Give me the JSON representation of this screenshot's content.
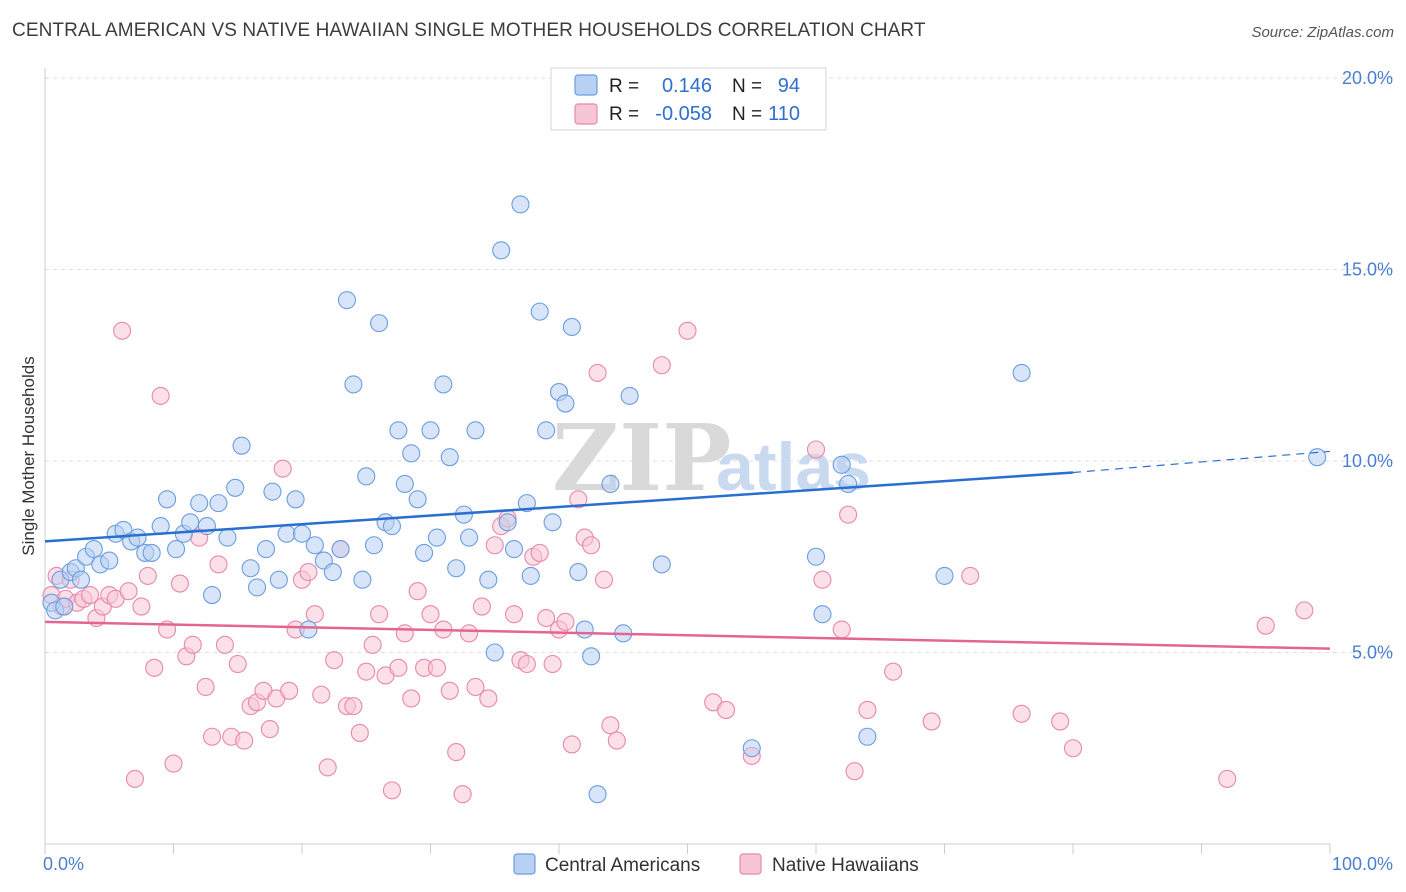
{
  "title": "CENTRAL AMERICAN VS NATIVE HAWAIIAN SINGLE MOTHER HOUSEHOLDS CORRELATION CHART",
  "source": "Source: ZipAtlas.com",
  "watermark": {
    "zip": "ZIP",
    "atlas": "atlas"
  },
  "colors": {
    "blue_fill": "#b8d0f3",
    "blue_stroke": "#6a9ee0",
    "blue_line": "#2a6fcf",
    "pink_fill": "#f7c6d6",
    "pink_stroke": "#e888aa",
    "pink_line": "#e36592",
    "axis_text": "#4a7fd0",
    "grid": "#dddddd"
  },
  "legend": {
    "rows": [
      {
        "r_label": "R =",
        "r_value": "0.146",
        "n_label": "N =",
        "n_value": "94"
      },
      {
        "r_label": "R =",
        "r_value": "-0.058",
        "n_label": "N =",
        "n_value": "110"
      }
    ]
  },
  "chart_data": {
    "type": "scatter",
    "title": "CENTRAL AMERICAN VS NATIVE HAWAIIAN SINGLE MOTHER HOUSEHOLDS CORRELATION CHART",
    "xlabel": "",
    "ylabel": "Single Mother Households",
    "xlim": [
      0,
      100
    ],
    "ylim": [
      0,
      20
    ],
    "x_tick_labels": [
      "0.0%",
      "100.0%"
    ],
    "y_ticks": [
      5,
      10,
      15,
      20
    ],
    "y_tick_labels": [
      "5.0%",
      "10.0%",
      "15.0%",
      "20.0%"
    ],
    "grid": true,
    "legend_position": "top-center",
    "series": [
      {
        "name": "Central Americans",
        "color": "#6a9ee0",
        "trend": {
          "x": [
            0,
            80
          ],
          "y": [
            7.9,
            9.7
          ],
          "dashed_to": [
            100,
            10.25
          ]
        },
        "points": [
          [
            0.5,
            6.3
          ],
          [
            0.8,
            6.1
          ],
          [
            1.2,
            6.9
          ],
          [
            1.5,
            6.2
          ],
          [
            2,
            7.1
          ],
          [
            2.4,
            7.2
          ],
          [
            2.8,
            6.9
          ],
          [
            3.2,
            7.5
          ],
          [
            3.8,
            7.7
          ],
          [
            4.3,
            7.3
          ],
          [
            5,
            7.4
          ],
          [
            5.5,
            8.1
          ],
          [
            6.1,
            8.2
          ],
          [
            6.7,
            7.9
          ],
          [
            7.2,
            8
          ],
          [
            7.8,
            7.6
          ],
          [
            8.3,
            7.6
          ],
          [
            9,
            8.3
          ],
          [
            9.5,
            9
          ],
          [
            10.2,
            7.7
          ],
          [
            10.8,
            8.1
          ],
          [
            11.3,
            8.4
          ],
          [
            12,
            8.9
          ],
          [
            12.6,
            8.3
          ],
          [
            13,
            6.5
          ],
          [
            13.5,
            8.9
          ],
          [
            14.2,
            8
          ],
          [
            14.8,
            9.3
          ],
          [
            15.3,
            10.4
          ],
          [
            16,
            7.2
          ],
          [
            16.5,
            6.7
          ],
          [
            17.2,
            7.7
          ],
          [
            17.7,
            9.2
          ],
          [
            18.2,
            6.9
          ],
          [
            18.8,
            8.1
          ],
          [
            19.5,
            9
          ],
          [
            20,
            8.1
          ],
          [
            20.5,
            5.6
          ],
          [
            21,
            7.8
          ],
          [
            21.7,
            7.4
          ],
          [
            22.4,
            7.1
          ],
          [
            23,
            7.7
          ],
          [
            23.5,
            14.2
          ],
          [
            24,
            12
          ],
          [
            24.7,
            6.9
          ],
          [
            25,
            9.6
          ],
          [
            25.6,
            7.8
          ],
          [
            26,
            13.6
          ],
          [
            26.5,
            8.4
          ],
          [
            27,
            8.3
          ],
          [
            27.5,
            10.8
          ],
          [
            28,
            9.4
          ],
          [
            28.5,
            10.2
          ],
          [
            29,
            9
          ],
          [
            29.5,
            7.6
          ],
          [
            30,
            10.8
          ],
          [
            30.5,
            8
          ],
          [
            31,
            12
          ],
          [
            31.5,
            10.1
          ],
          [
            32,
            7.2
          ],
          [
            32.6,
            8.6
          ],
          [
            33,
            8
          ],
          [
            33.5,
            10.8
          ],
          [
            34.5,
            6.9
          ],
          [
            35,
            5
          ],
          [
            35.5,
            15.5
          ],
          [
            36,
            8.4
          ],
          [
            36.5,
            7.7
          ],
          [
            37,
            16.7
          ],
          [
            37.5,
            8.9
          ],
          [
            37.8,
            7
          ],
          [
            38.5,
            13.9
          ],
          [
            39,
            10.8
          ],
          [
            39.5,
            8.4
          ],
          [
            40,
            11.8
          ],
          [
            40.5,
            11.5
          ],
          [
            41,
            13.5
          ],
          [
            41.5,
            7.1
          ],
          [
            42,
            5.6
          ],
          [
            42.5,
            4.9
          ],
          [
            43,
            1.3
          ],
          [
            44,
            9.4
          ],
          [
            45,
            5.5
          ],
          [
            45.5,
            11.7
          ],
          [
            48,
            7.3
          ],
          [
            55,
            2.5
          ],
          [
            60,
            7.5
          ],
          [
            60.5,
            6
          ],
          [
            62,
            9.9
          ],
          [
            62.5,
            9.4
          ],
          [
            64,
            2.8
          ],
          [
            70,
            7
          ],
          [
            76,
            12.3
          ],
          [
            99,
            10.1
          ]
        ]
      },
      {
        "name": "Native Hawaiians",
        "color": "#e888aa",
        "trend": {
          "x": [
            0,
            100
          ],
          "y": [
            5.8,
            5.1
          ]
        },
        "points": [
          [
            0.5,
            6.5
          ],
          [
            0.9,
            7
          ],
          [
            1.3,
            6.2
          ],
          [
            1.6,
            6.4
          ],
          [
            2,
            6.9
          ],
          [
            2.5,
            6.3
          ],
          [
            3,
            6.4
          ],
          [
            3.5,
            6.5
          ],
          [
            4,
            5.9
          ],
          [
            4.5,
            6.2
          ],
          [
            5,
            6.5
          ],
          [
            5.5,
            6.4
          ],
          [
            6,
            13.4
          ],
          [
            6.5,
            6.6
          ],
          [
            7,
            1.7
          ],
          [
            7.5,
            6.2
          ],
          [
            8,
            7
          ],
          [
            8.5,
            4.6
          ],
          [
            9,
            11.7
          ],
          [
            9.5,
            5.6
          ],
          [
            10,
            2.1
          ],
          [
            10.5,
            6.8
          ],
          [
            11,
            4.9
          ],
          [
            11.5,
            5.2
          ],
          [
            12,
            8
          ],
          [
            12.5,
            4.1
          ],
          [
            13,
            2.8
          ],
          [
            13.5,
            7.3
          ],
          [
            14,
            5.2
          ],
          [
            14.5,
            2.8
          ],
          [
            15,
            4.7
          ],
          [
            15.5,
            2.7
          ],
          [
            16,
            3.6
          ],
          [
            16.5,
            3.7
          ],
          [
            17,
            4
          ],
          [
            17.5,
            3
          ],
          [
            18,
            3.8
          ],
          [
            18.5,
            9.8
          ],
          [
            19,
            4
          ],
          [
            19.5,
            5.6
          ],
          [
            20,
            6.9
          ],
          [
            20.5,
            7.1
          ],
          [
            21,
            6
          ],
          [
            21.5,
            3.9
          ],
          [
            22,
            2
          ],
          [
            22.5,
            4.8
          ],
          [
            23,
            7.7
          ],
          [
            23.5,
            3.6
          ],
          [
            24,
            3.6
          ],
          [
            24.5,
            2.9
          ],
          [
            25,
            4.5
          ],
          [
            25.5,
            5.2
          ],
          [
            26,
            6
          ],
          [
            26.5,
            4.4
          ],
          [
            27,
            1.4
          ],
          [
            27.5,
            4.6
          ],
          [
            28,
            5.5
          ],
          [
            28.5,
            3.8
          ],
          [
            29,
            6.6
          ],
          [
            29.5,
            4.6
          ],
          [
            30,
            6
          ],
          [
            30.5,
            4.6
          ],
          [
            31,
            5.6
          ],
          [
            31.5,
            4
          ],
          [
            32,
            2.4
          ],
          [
            32.5,
            1.3
          ],
          [
            33,
            5.5
          ],
          [
            33.5,
            4.1
          ],
          [
            34,
            6.2
          ],
          [
            34.5,
            3.8
          ],
          [
            35,
            7.8
          ],
          [
            35.5,
            8.3
          ],
          [
            36,
            8.5
          ],
          [
            36.5,
            6
          ],
          [
            37,
            4.8
          ],
          [
            37.5,
            4.7
          ],
          [
            38,
            7.5
          ],
          [
            38.5,
            7.6
          ],
          [
            39,
            5.9
          ],
          [
            39.5,
            4.7
          ],
          [
            40,
            5.6
          ],
          [
            40.5,
            5.8
          ],
          [
            41,
            2.6
          ],
          [
            41.5,
            9
          ],
          [
            42,
            8
          ],
          [
            42.5,
            7.8
          ],
          [
            43,
            12.3
          ],
          [
            43.5,
            6.9
          ],
          [
            44,
            3.1
          ],
          [
            44.5,
            2.7
          ],
          [
            48,
            12.5
          ],
          [
            50,
            13.4
          ],
          [
            52,
            3.7
          ],
          [
            53,
            3.5
          ],
          [
            55,
            2.3
          ],
          [
            60,
            10.3
          ],
          [
            60.5,
            6.9
          ],
          [
            62,
            5.6
          ],
          [
            62.5,
            8.6
          ],
          [
            63,
            1.9
          ],
          [
            64,
            3.5
          ],
          [
            66,
            4.5
          ],
          [
            69,
            3.2
          ],
          [
            72,
            7
          ],
          [
            76,
            3.4
          ],
          [
            79,
            3.2
          ],
          [
            80,
            2.5
          ],
          [
            92,
            1.7
          ],
          [
            95,
            5.7
          ],
          [
            98,
            6.1
          ]
        ]
      }
    ]
  },
  "bottom_legend": [
    {
      "label": "Central Americans"
    },
    {
      "label": "Native Hawaiians"
    }
  ]
}
